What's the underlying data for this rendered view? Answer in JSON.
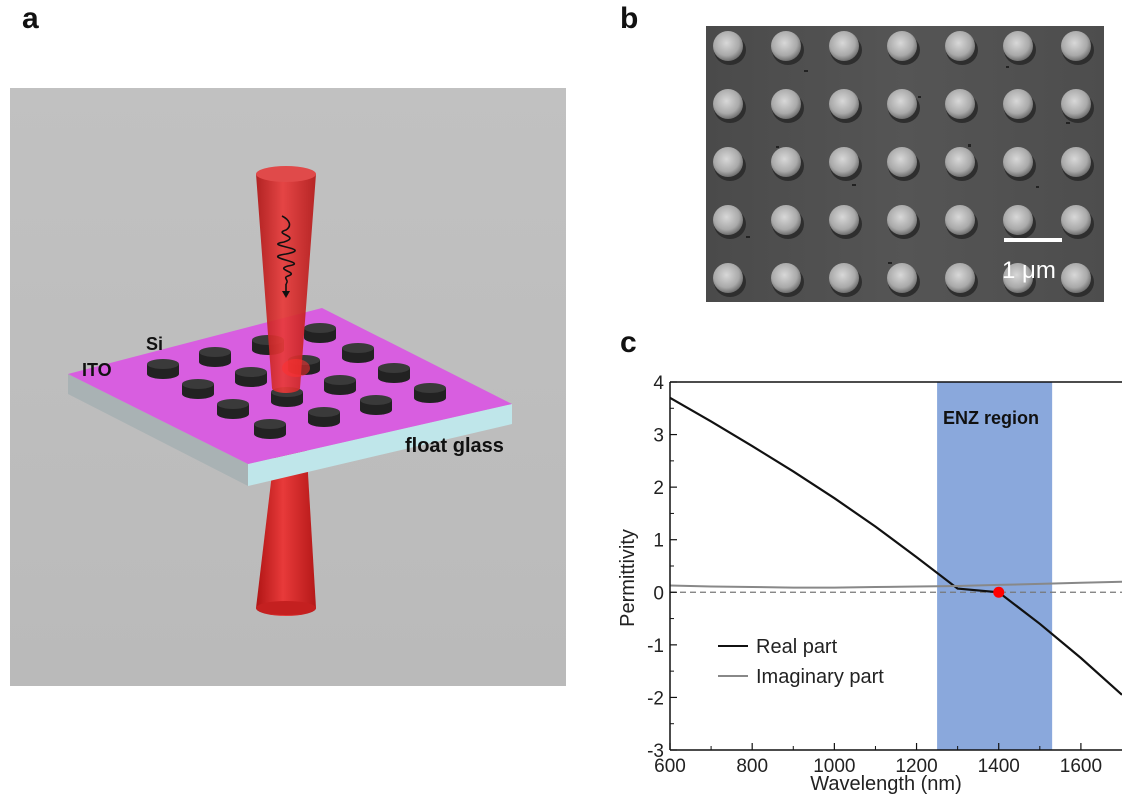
{
  "panels": {
    "a": {
      "letter": "a",
      "labels": {
        "si": "Si",
        "ito": "ITO",
        "glass": "float glass"
      }
    },
    "b": {
      "letter": "b",
      "scale_bar": "1 μm"
    },
    "c": {
      "letter": "c"
    }
  },
  "colors": {
    "background_gray": "#bdbdbd",
    "beam_red": "#d91f1f",
    "ito_magenta": "#d95ee0",
    "glass_cyan": "#b9e6e9",
    "enz_band": "#8aa8dc",
    "marker_red": "#ff0000"
  },
  "chart_data": {
    "type": "line",
    "xlabel": "Wavelength (nm)",
    "ylabel": "Permittivity",
    "xlim": [
      600,
      1700
    ],
    "ylim": [
      -3,
      4
    ],
    "xticks": [
      600,
      800,
      1000,
      1200,
      1400,
      1600
    ],
    "yticks": [
      4,
      3,
      2,
      1,
      0,
      -1,
      -2,
      -3
    ],
    "region": {
      "label": "ENZ region",
      "x_start": 1250,
      "x_end": 1530
    },
    "zero_crossing": {
      "x": 1400,
      "y": 0
    },
    "legend": {
      "placement": "bottom-left"
    },
    "series": [
      {
        "name": "Real part",
        "color": "#111111",
        "x": [
          600,
          700,
          800,
          900,
          1000,
          1100,
          1200,
          1300,
          1400,
          1500,
          1600,
          1700
        ],
        "y": [
          3.7,
          3.25,
          2.78,
          2.3,
          1.79,
          1.25,
          0.67,
          0.07,
          0.0,
          -0.6,
          -1.25,
          -1.95
        ]
      },
      {
        "name": "Imaginary part",
        "color": "#888888",
        "x": [
          600,
          700,
          800,
          900,
          1000,
          1100,
          1200,
          1300,
          1400,
          1500,
          1600,
          1700
        ],
        "y": [
          0.13,
          0.11,
          0.1,
          0.09,
          0.09,
          0.1,
          0.11,
          0.12,
          0.14,
          0.16,
          0.18,
          0.2
        ]
      }
    ]
  }
}
